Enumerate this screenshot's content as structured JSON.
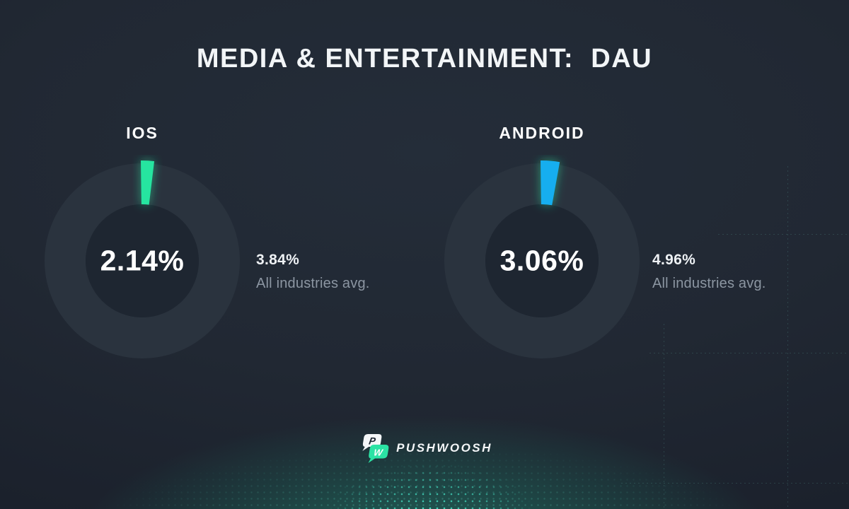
{
  "header": {
    "title": "MEDIA & ENTERTAINMENT:  DAU"
  },
  "chart_data": [
    {
      "type": "pie",
      "variant": "donut",
      "platform": "IOS",
      "labels": [
        "Media & Entertainment DAU",
        "Remainder"
      ],
      "values": [
        2.14,
        97.86
      ],
      "value_pct": 2.14,
      "center_label": "2.14%",
      "benchmark_pct": 3.84,
      "benchmark_label": "3.84%",
      "benchmark_caption": "All industries avg.",
      "segment_color": "#26E5A0",
      "glow_color": "#26E5A0",
      "track_color": "#2A333E",
      "hole_color": "#1E2631",
      "legend_position": "none"
    },
    {
      "type": "pie",
      "variant": "donut",
      "platform": "ANDROID",
      "labels": [
        "Media & Entertainment DAU",
        "Remainder"
      ],
      "values": [
        3.06,
        96.94
      ],
      "value_pct": 3.06,
      "center_label": "3.06%",
      "benchmark_pct": 4.96,
      "benchmark_label": "4.96%",
      "benchmark_caption": "All industries avg.",
      "segment_color": "#15AEEF",
      "glow_color": "#26E5A0",
      "track_color": "#2A333E",
      "hole_color": "#1E2631",
      "legend_position": "none"
    }
  ],
  "footer": {
    "brand": "PUSHWOOSH",
    "logo_letters": [
      "P",
      "W"
    ]
  },
  "colors": {
    "background": "#212833",
    "accent_green": "#26E5A0",
    "accent_blue": "#15AEEF",
    "text_primary": "#FFFFFF",
    "text_muted": "#8C96A2",
    "bottom_glow": "#1E6458",
    "grid_line": "#6ECDBE"
  }
}
